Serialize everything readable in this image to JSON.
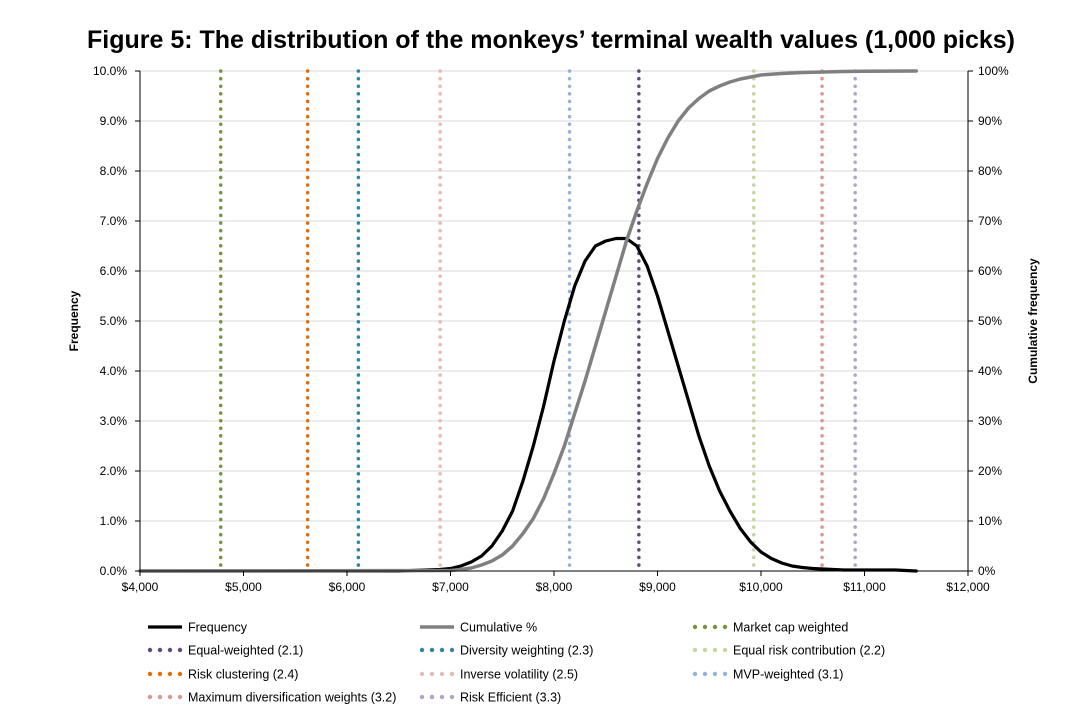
{
  "chart_data": {
    "type": "line",
    "title": "Figure 5: The distribution of the monkeys’ terminal wealth values (1,000 picks)",
    "ylabel": "Frequency",
    "y2label": "Cumulative frequency",
    "xlim": [
      4000,
      12000
    ],
    "ylim": [
      0,
      0.1
    ],
    "y2lim": [
      0,
      1
    ],
    "grid": true,
    "legend_position": "bottom",
    "x_ticks": [
      4000,
      5000,
      6000,
      7000,
      8000,
      9000,
      10000,
      11000,
      12000
    ],
    "x_tick_labels": [
      "$4,000",
      "$5,000",
      "$6,000",
      "$7,000",
      "$8,000",
      "$9,000",
      "$10,000",
      "$11,000",
      "$12,000"
    ],
    "y_ticks": [
      0,
      0.01,
      0.02,
      0.03,
      0.04,
      0.05,
      0.06,
      0.07,
      0.08,
      0.09,
      0.1
    ],
    "y_tick_labels": [
      "0.0%",
      "1.0%",
      "2.0%",
      "3.0%",
      "4.0%",
      "5.0%",
      "6.0%",
      "7.0%",
      "8.0%",
      "9.0%",
      "10.0%"
    ],
    "y2_ticks": [
      0,
      0.1,
      0.2,
      0.3,
      0.4,
      0.5,
      0.6,
      0.7,
      0.8,
      0.9,
      1.0
    ],
    "y2_tick_labels": [
      "0%",
      "10%",
      "20%",
      "30%",
      "40%",
      "50%",
      "60%",
      "70%",
      "80%",
      "90%",
      "100%"
    ],
    "series": [
      {
        "name": "Frequency",
        "axis": "left",
        "color": "#000000",
        "style": "solid",
        "x": [
          4000,
          6500,
          6900,
          7000,
          7100,
          7200,
          7300,
          7400,
          7500,
          7600,
          7700,
          7800,
          7900,
          8000,
          8100,
          8200,
          8300,
          8400,
          8500,
          8600,
          8700,
          8800,
          8900,
          9000,
          9100,
          9200,
          9300,
          9400,
          9500,
          9600,
          9700,
          9800,
          9900,
          10000,
          10100,
          10200,
          10300,
          10400,
          10500,
          10600,
          10700,
          10800,
          10900,
          11000,
          11100,
          11200,
          11300,
          11400,
          11500
        ],
        "values": [
          0,
          0,
          0.0003,
          0.0005,
          0.001,
          0.0018,
          0.003,
          0.005,
          0.008,
          0.012,
          0.018,
          0.025,
          0.033,
          0.042,
          0.05,
          0.057,
          0.062,
          0.065,
          0.066,
          0.0665,
          0.0665,
          0.065,
          0.061,
          0.055,
          0.048,
          0.041,
          0.034,
          0.027,
          0.021,
          0.016,
          0.012,
          0.0085,
          0.0058,
          0.0038,
          0.0025,
          0.0016,
          0.001,
          0.0007,
          0.0005,
          0.0004,
          0.0003,
          0.0002,
          0.0002,
          0.0002,
          0.0002,
          0.0002,
          0.0002,
          0.0001,
          0
        ]
      },
      {
        "name": "Cumulative %",
        "axis": "right",
        "color": "#808080",
        "style": "solid",
        "x": [
          4000,
          7000,
          7100,
          7200,
          7300,
          7400,
          7500,
          7600,
          7700,
          7800,
          7900,
          8000,
          8100,
          8200,
          8300,
          8400,
          8500,
          8600,
          8700,
          8800,
          8900,
          9000,
          9100,
          9200,
          9300,
          9400,
          9500,
          9600,
          9700,
          9800,
          9900,
          10000,
          10200,
          10400,
          10600,
          10800,
          11000,
          11500
        ],
        "values": [
          0,
          0.001,
          0.003,
          0.006,
          0.012,
          0.02,
          0.032,
          0.05,
          0.075,
          0.105,
          0.145,
          0.195,
          0.25,
          0.315,
          0.38,
          0.45,
          0.52,
          0.59,
          0.66,
          0.72,
          0.775,
          0.825,
          0.866,
          0.9,
          0.926,
          0.945,
          0.96,
          0.97,
          0.978,
          0.984,
          0.988,
          0.992,
          0.995,
          0.997,
          0.998,
          0.999,
          0.9995,
          1.0
        ]
      }
    ],
    "markers": [
      {
        "name": "Market cap weighted",
        "x": 4780,
        "color": "#77933C"
      },
      {
        "name": "Equal-weighted (2.1)",
        "x": 8820,
        "color": "#604A7B"
      },
      {
        "name": "Diversity weighting (2.3)",
        "x": 6110,
        "color": "#31859C"
      },
      {
        "name": "Equal risk contribution (2.2)",
        "x": 9930,
        "color": "#C3D69B"
      },
      {
        "name": "Risk clustering (2.4)",
        "x": 5620,
        "color": "#E46C0A"
      },
      {
        "name": "Inverse volatility (2.5)",
        "x": 6900,
        "color": "#E6B9B8"
      },
      {
        "name": "MVP-weighted (3.1)",
        "x": 8150,
        "color": "#95B3D7"
      },
      {
        "name": "Maximum diversification weights (3.2)",
        "x": 10590,
        "color": "#D99694"
      },
      {
        "name": "Risk Efficient (3.3)",
        "x": 10910,
        "color": "#B3A2C7"
      }
    ],
    "legend_order": [
      "Frequency",
      "Cumulative %",
      "Market cap weighted",
      "Equal-weighted (2.1)",
      "Diversity weighting (2.3)",
      "Equal risk contribution (2.2)",
      "Risk clustering (2.4)",
      "Inverse volatility (2.5)",
      "MVP-weighted (3.1)",
      "Maximum diversification weights (3.2)",
      "Risk Efficient (3.3)"
    ]
  }
}
